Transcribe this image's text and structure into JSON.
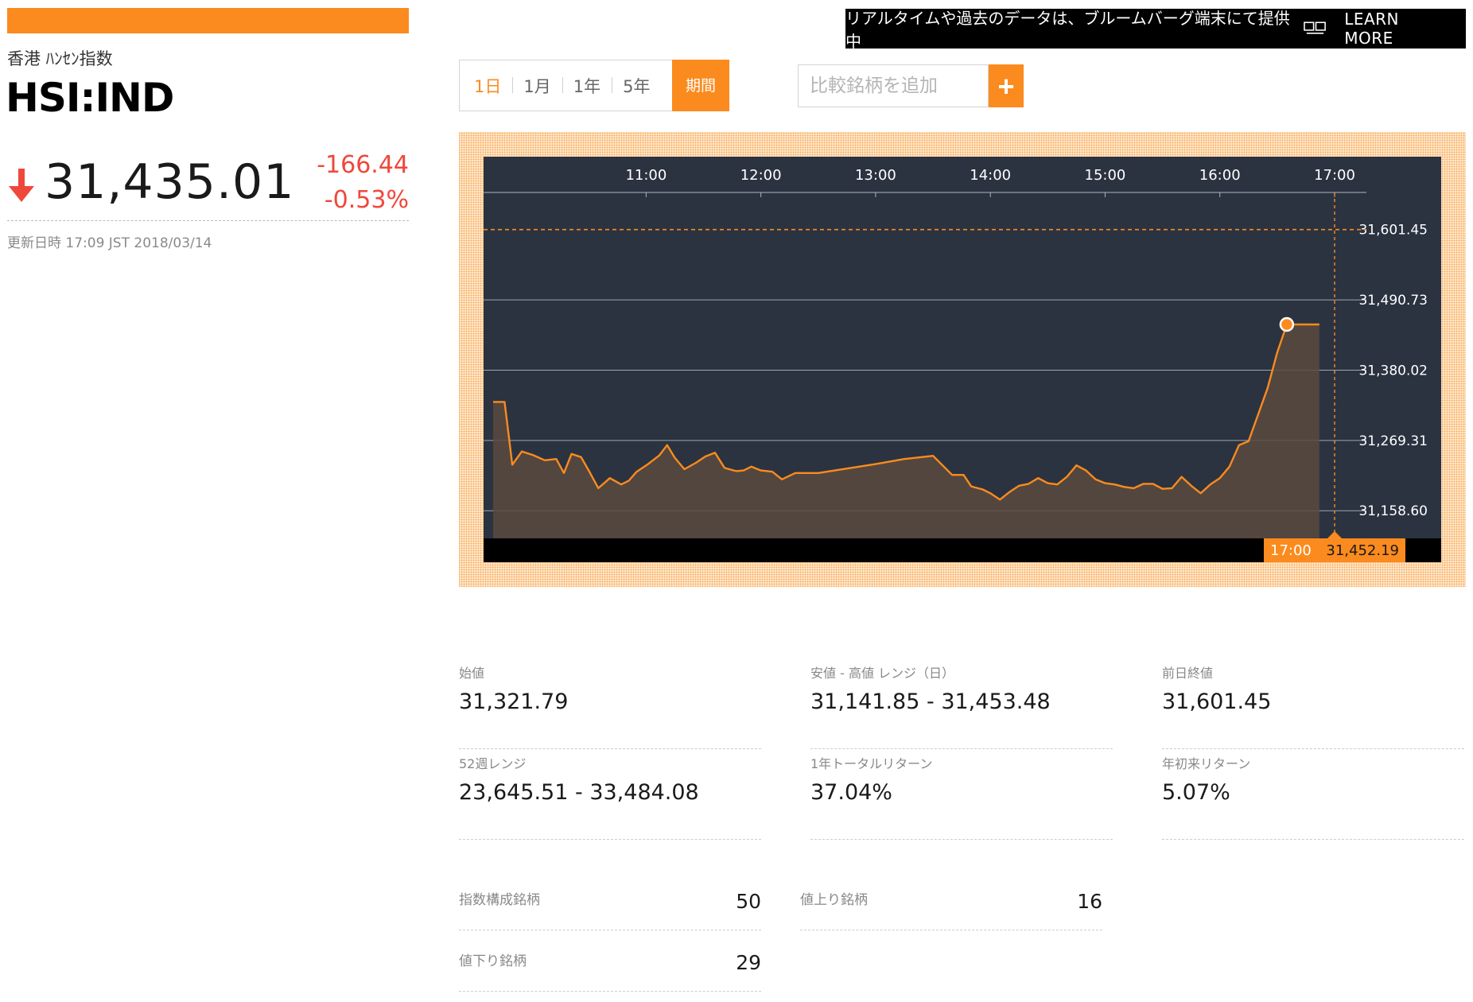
{
  "quote": {
    "name": "香港 ﾊﾝｾﾝ指数",
    "ticker": "HSI:IND",
    "price": "31,435.01",
    "change_abs": "-166.44",
    "change_pct": "-0.53%",
    "updated": "更新日時 17:09 JST 2018/03/14",
    "direction_icon": "down-arrow-icon",
    "accent_color": "#fb8b1e",
    "negative_color": "#f0473b"
  },
  "banner": {
    "text": "リアルタイムや過去のデータは、ブルームバーグ端末にて提供中",
    "icon": "terminal-icon",
    "learn_more": "LEARN MORE"
  },
  "tabs": [
    {
      "label": "1日",
      "active": true
    },
    {
      "label": "1月",
      "active": false
    },
    {
      "label": "1年",
      "active": false
    },
    {
      "label": "5年",
      "active": false
    },
    {
      "label": "期間",
      "active": false
    }
  ],
  "compare": {
    "placeholder": "比較銘柄を追加",
    "add_label": "+"
  },
  "chart_data": {
    "type": "area",
    "x_ticks": [
      "11:00",
      "12:00",
      "13:00",
      "14:00",
      "15:00",
      "16:00",
      "17:00"
    ],
    "y_ticks": [
      "31,601.45",
      "31,490.73",
      "31,380.02",
      "31,269.31",
      "31,158.60"
    ],
    "y_tick_values": [
      31601.45,
      31490.73,
      31380.02,
      31269.31,
      31158.6
    ],
    "ylim": [
      31115,
      31660
    ],
    "x_range_minutes": [
      575,
      1020
    ],
    "reference_line": 31601.45,
    "last_point": {
      "time": "17:00",
      "value": "31,452.19"
    },
    "series": [
      {
        "time_minutes": [
          580,
          586,
          590,
          595,
          601,
          607,
          613,
          617,
          621,
          626,
          630,
          635,
          641,
          647,
          651,
          655,
          661,
          667,
          671,
          675,
          680,
          686,
          691,
          696,
          701,
          707,
          711,
          715,
          720,
          726,
          731,
          738,
          750,
          765,
          780,
          795,
          810,
          820,
          826,
          830,
          836,
          840,
          845,
          850,
          855,
          860,
          865,
          870,
          875,
          880,
          885,
          890,
          895,
          900,
          905,
          910,
          915,
          920,
          925,
          930,
          935,
          940,
          945,
          950,
          955,
          960,
          965,
          970,
          975,
          980,
          985,
          990,
          995,
          1000,
          1005,
          1012
        ],
        "values": [
          31330,
          31330,
          31231,
          31252,
          31246,
          31238,
          31240,
          31218,
          31248,
          31243,
          31222,
          31194,
          31210,
          31200,
          31206,
          31220,
          31232,
          31246,
          31262,
          31242,
          31224,
          31234,
          31244,
          31250,
          31226,
          31221,
          31222,
          31228,
          31222,
          31220,
          31208,
          31218,
          31218,
          31225,
          31232,
          31240,
          31245,
          31215,
          31215,
          31197,
          31192,
          31186,
          31176,
          31188,
          31198,
          31201,
          31210,
          31202,
          31200,
          31212,
          31230,
          31222,
          31208,
          31202,
          31200,
          31196,
          31194,
          31201,
          31201,
          31193,
          31194,
          31212,
          31198,
          31186,
          31200,
          31210,
          31228,
          31262,
          31268,
          31310,
          31352,
          31408,
          31452,
          31452,
          31452,
          31452
        ]
      }
    ]
  },
  "stats": [
    {
      "label": "始値",
      "value": "31,321.79"
    },
    {
      "label": "安値 - 高値 レンジ（日）",
      "value": "31,141.85 - 31,453.48"
    },
    {
      "label": "前日終値",
      "value": "31,601.45"
    },
    {
      "label": "52週レンジ",
      "value": "23,645.51 - 33,484.08"
    },
    {
      "label": "1年トータルリターン",
      "value": "37.04%"
    },
    {
      "label": "年初来リターン",
      "value": "5.07%"
    }
  ],
  "counts": [
    {
      "label": "指数構成銘柄",
      "value": "50"
    },
    {
      "label": "値上り銘柄",
      "value": "16"
    },
    {
      "label": "値下り銘柄",
      "value": "29"
    }
  ]
}
